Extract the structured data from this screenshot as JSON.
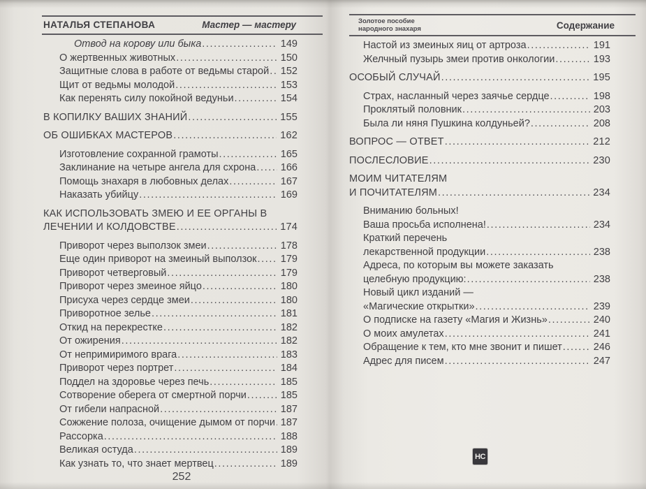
{
  "left_page": {
    "header": {
      "author": "НАТАЛЬЯ СТЕПАНОВА",
      "motto": "Мастер — мастеру"
    },
    "entries": [
      {
        "type": "italic",
        "lines": [
          "Отвод на корову или быка"
        ],
        "page": "149"
      },
      {
        "type": "sub",
        "lines": [
          "О жертвенных животных"
        ],
        "page": "150"
      },
      {
        "type": "sub",
        "lines": [
          "Защитные слова в работе от ведьмы старой"
        ],
        "page": "152"
      },
      {
        "type": "sub",
        "lines": [
          "Щит от ведьмы молодой"
        ],
        "page": "153"
      },
      {
        "type": "sub",
        "lines": [
          "Как перенять силу покойной ведуньи"
        ],
        "page": "154"
      },
      {
        "type": "section",
        "lines": [
          "В КОПИЛКУ ВАШИХ ЗНАНИЙ"
        ],
        "page": "155"
      },
      {
        "type": "section",
        "lines": [
          "ОБ ОШИБКАХ МАСТЕРОВ"
        ],
        "page": "162"
      },
      {
        "type": "sub",
        "lines": [
          "Изготовление сохранной грамоты"
        ],
        "page": "165"
      },
      {
        "type": "sub",
        "lines": [
          "Заклинание на четыре ангела для схрона"
        ],
        "page": "166"
      },
      {
        "type": "sub",
        "lines": [
          "Помощь знахаря в любовных делах"
        ],
        "page": "167"
      },
      {
        "type": "sub",
        "lines": [
          "Наказать убийцу"
        ],
        "page": "169"
      },
      {
        "type": "section",
        "lines": [
          "КАК ИСПОЛЬЗОВАТЬ ЗМЕЮ И ЕЕ ОРГАНЫ В",
          "ЛЕЧЕНИИ И КОЛДОВСТВЕ"
        ],
        "page": "174"
      },
      {
        "type": "sub",
        "lines": [
          "Приворот через выползок змеи"
        ],
        "page": "178"
      },
      {
        "type": "sub",
        "lines": [
          "Еще один приворот на змеиный выползок"
        ],
        "page": "179"
      },
      {
        "type": "sub",
        "lines": [
          "Приворот четверговый"
        ],
        "page": "179"
      },
      {
        "type": "sub",
        "lines": [
          "Приворот через змеиное яйцо"
        ],
        "page": "180"
      },
      {
        "type": "sub",
        "lines": [
          "Присуха через сердце змеи"
        ],
        "page": "180"
      },
      {
        "type": "sub",
        "lines": [
          "Приворотное зелье"
        ],
        "page": "181"
      },
      {
        "type": "sub",
        "lines": [
          "Откид на перекрестке"
        ],
        "page": "182"
      },
      {
        "type": "sub",
        "lines": [
          "От ожирения"
        ],
        "page": "182"
      },
      {
        "type": "sub",
        "lines": [
          "От непримиримого врага"
        ],
        "page": "183"
      },
      {
        "type": "sub",
        "lines": [
          "Приворот через портрет"
        ],
        "page": "184"
      },
      {
        "type": "sub",
        "lines": [
          "Поддел на здоровье через печь"
        ],
        "page": "185"
      },
      {
        "type": "sub",
        "lines": [
          "Сотворение оберега от смертной порчи"
        ],
        "page": "185"
      },
      {
        "type": "sub",
        "lines": [
          "От гибели напрасной"
        ],
        "page": "187"
      },
      {
        "type": "sub",
        "lines": [
          "Сожжение полоза, очищение дымом от порчи"
        ],
        "page": "187"
      },
      {
        "type": "sub",
        "lines": [
          "Рассорка"
        ],
        "page": "188"
      },
      {
        "type": "sub",
        "lines": [
          "Великая остуда"
        ],
        "page": "189"
      },
      {
        "type": "sub",
        "lines": [
          "Как узнать то, что знает мертвец"
        ],
        "page": "189"
      }
    ],
    "page_number": "252"
  },
  "right_page": {
    "header": {
      "book_line1": "Золотое пособие",
      "book_line2": "народного знахаря",
      "title": "Содержание"
    },
    "entries": [
      {
        "type": "sub",
        "lines": [
          "Настой из змеиных яиц от артроза"
        ],
        "page": "191"
      },
      {
        "type": "sub",
        "lines": [
          "Желчный пузырь змеи против онкологии"
        ],
        "page": "193"
      },
      {
        "type": "section",
        "lines": [
          "ОСОБЫЙ СЛУЧАЙ"
        ],
        "page": "195"
      },
      {
        "type": "sub",
        "lines": [
          "Страх, насланный через заячье сердце"
        ],
        "page": "198"
      },
      {
        "type": "sub",
        "lines": [
          "Проклятый половник"
        ],
        "page": "203"
      },
      {
        "type": "sub",
        "lines": [
          "Была ли няня Пушкина колдуньей?"
        ],
        "page": "208"
      },
      {
        "type": "section",
        "lines": [
          "ВОПРОС — ОТВЕТ"
        ],
        "page": "212"
      },
      {
        "type": "section",
        "lines": [
          "ПОСЛЕСЛОВИЕ"
        ],
        "page": "230"
      },
      {
        "type": "section",
        "lines": [
          "МОИМ ЧИТАТЕЛЯМ",
          "И ПОЧИТАТЕЛЯМ"
        ],
        "page": "234"
      },
      {
        "type": "sub",
        "lines": [
          "Вниманию больных!",
          "Ваша просьба исполнена!"
        ],
        "page": "234"
      },
      {
        "type": "sub",
        "lines": [
          "Краткий перечень",
          "лекарственной продукции"
        ],
        "page": "238"
      },
      {
        "type": "sub",
        "lines": [
          "Адреса, по которым вы можете заказать",
          "целебную продукцию:"
        ],
        "page": "238"
      },
      {
        "type": "sub",
        "lines": [
          "Новый цикл изданий —",
          "«Магические открытки»"
        ],
        "page": "239"
      },
      {
        "type": "sub",
        "lines": [
          "О подписке на газету «Магия и Жизнь»"
        ],
        "page": "240"
      },
      {
        "type": "sub",
        "lines": [
          "О моих амулетах"
        ],
        "page": "241"
      },
      {
        "type": "sub",
        "lines": [
          "Обращение к тем, кто мне звонит и пишет"
        ],
        "page": "246"
      },
      {
        "type": "sub",
        "lines": [
          "Адрес для писем"
        ],
        "page": "247"
      }
    ],
    "logo": "НС"
  }
}
